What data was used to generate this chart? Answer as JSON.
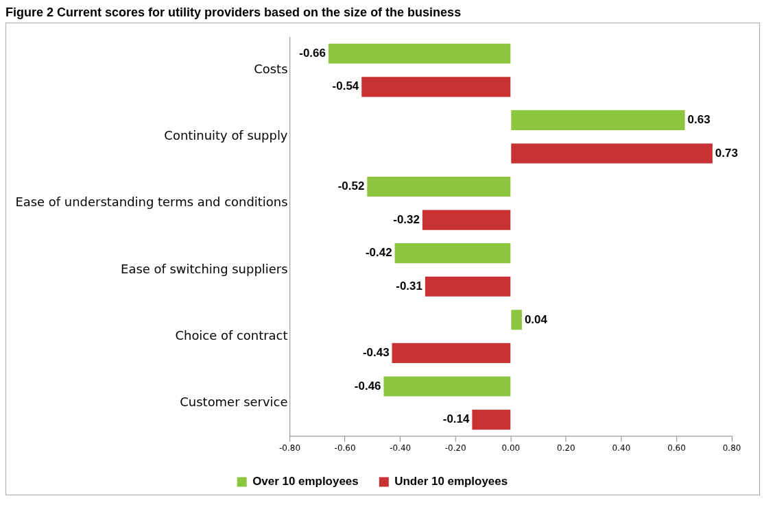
{
  "chart_data": {
    "type": "bar",
    "orientation": "horizontal",
    "title": "Figure 2 Current scores for utility providers based on the size of the business",
    "categories": [
      "Costs",
      "Continuity of supply",
      "Ease of understanding terms and conditions",
      "Ease of switching suppliers",
      "Choice of contract",
      "Customer service"
    ],
    "series": [
      {
        "name": "Over 10 employees",
        "color": "#8cc63e",
        "values": [
          -0.66,
          0.63,
          -0.52,
          -0.42,
          0.04,
          -0.46
        ]
      },
      {
        "name": "Under 10 employees",
        "color": "#c83232",
        "values": [
          -0.54,
          0.73,
          -0.32,
          -0.31,
          -0.43,
          -0.14
        ]
      }
    ],
    "xlim": [
      -0.8,
      0.8
    ],
    "xticks": [
      {
        "value": -0.8,
        "label": "-0.80"
      },
      {
        "value": -0.6,
        "label": "-0.60"
      },
      {
        "value": -0.4,
        "label": "-0.40"
      },
      {
        "value": -0.2,
        "label": "-0.20"
      },
      {
        "value": 0,
        "label": "0.00"
      },
      {
        "value": 0.2,
        "label": "0.20"
      },
      {
        "value": 0.4,
        "label": "0.40"
      },
      {
        "value": 0.6,
        "label": "0.60"
      },
      {
        "value": 0.8,
        "label": "0.80"
      }
    ],
    "grid": false,
    "legend": "bottom",
    "data_labels": true
  }
}
